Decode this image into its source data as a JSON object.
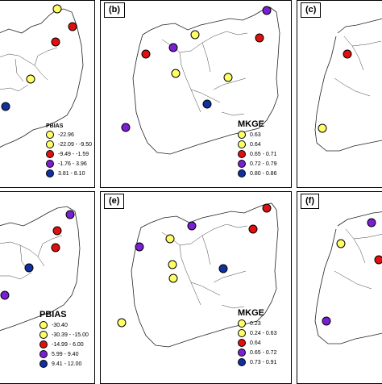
{
  "panels": {
    "a": {
      "label": "",
      "legend_title": "PBIAS",
      "legend": [
        {
          "text": "-22.96",
          "color": "#ffff66"
        },
        {
          "text": "-22.09 - -9.50",
          "color": "#ffff66"
        },
        {
          "text": "-9.49 - -1.59",
          "color": "#e01010"
        },
        {
          "text": "-1.76 - 3.96",
          "color": "#7a1fd6"
        },
        {
          "text": "3.81 - 8.10",
          "color": "#1030a0"
        }
      ]
    },
    "b": {
      "label": "(b)",
      "legend_title": "MKGE",
      "legend": [
        {
          "text": "0.63",
          "color": "#ffff66"
        },
        {
          "text": "0.64",
          "color": "#ffff66"
        },
        {
          "text": "0.65 - 0.71",
          "color": "#e01010"
        },
        {
          "text": "0.72 - 0.79",
          "color": "#7a1fd6"
        },
        {
          "text": "0.80 - 0.86",
          "color": "#1030a0"
        }
      ]
    },
    "c": {
      "label": "(c)"
    },
    "d": {
      "label": "",
      "legend_title": "PBIAS",
      "legend": [
        {
          "text": "-30.40",
          "color": "#ffff66"
        },
        {
          "text": "-30.39 - -15.00",
          "color": "#ffff66"
        },
        {
          "text": "-14.99 - 6.00",
          "color": "#e01010"
        },
        {
          "text": "5.99 - 9.40",
          "color": "#7a1fd6"
        },
        {
          "text": "9.41 - 12.00",
          "color": "#1030a0"
        }
      ]
    },
    "e": {
      "label": "(e)",
      "legend_title": "MKGE",
      "legend": [
        {
          "text": "0.23",
          "color": "#ffff66"
        },
        {
          "text": "0.24 - 0.63",
          "color": "#ffff66"
        },
        {
          "text": "0.64",
          "color": "#e01010"
        },
        {
          "text": "0.65 - 0.72",
          "color": "#7a1fd6"
        },
        {
          "text": "0.73 - 0.91",
          "color": "#1030a0"
        }
      ]
    },
    "f": {
      "label": "(f)"
    }
  }
}
